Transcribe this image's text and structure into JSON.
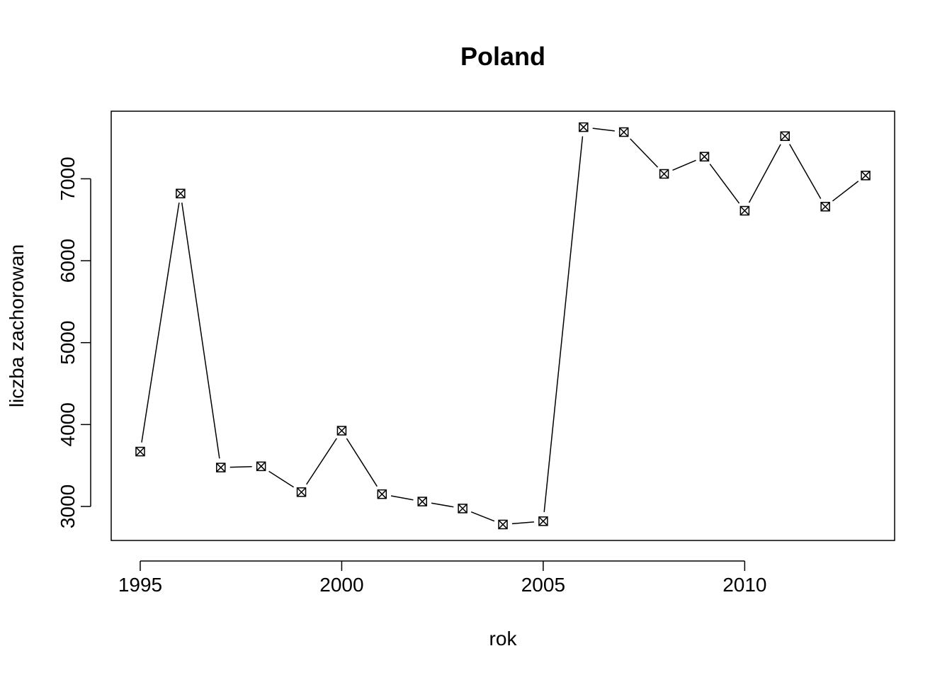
{
  "chart_data": {
    "type": "line",
    "title": "Poland",
    "xlabel": "rok",
    "ylabel": "liczba zachorowan",
    "x": [
      1995,
      1996,
      1997,
      1998,
      1999,
      2000,
      2001,
      2002,
      2003,
      2004,
      2005,
      2006,
      2007,
      2008,
      2009,
      2010,
      2011,
      2012,
      2013
    ],
    "series": [
      {
        "values": [
          3670,
          6820,
          3475,
          3490,
          3175,
          3925,
          3150,
          3060,
          2975,
          2780,
          2820,
          7630,
          7570,
          7060,
          7270,
          6610,
          7520,
          6660,
          7040
        ]
      }
    ],
    "xlim": [
      1994.28,
      2013.72
    ],
    "ylim": [
      2585,
      7825
    ],
    "xticks": [
      "1995",
      "2000",
      "2005",
      "2010"
    ],
    "yticks": [
      "3000",
      "4000",
      "5000",
      "6000",
      "7000"
    ],
    "marker": "square-x",
    "line_style": "b",
    "grid": false,
    "color": "#000000"
  }
}
